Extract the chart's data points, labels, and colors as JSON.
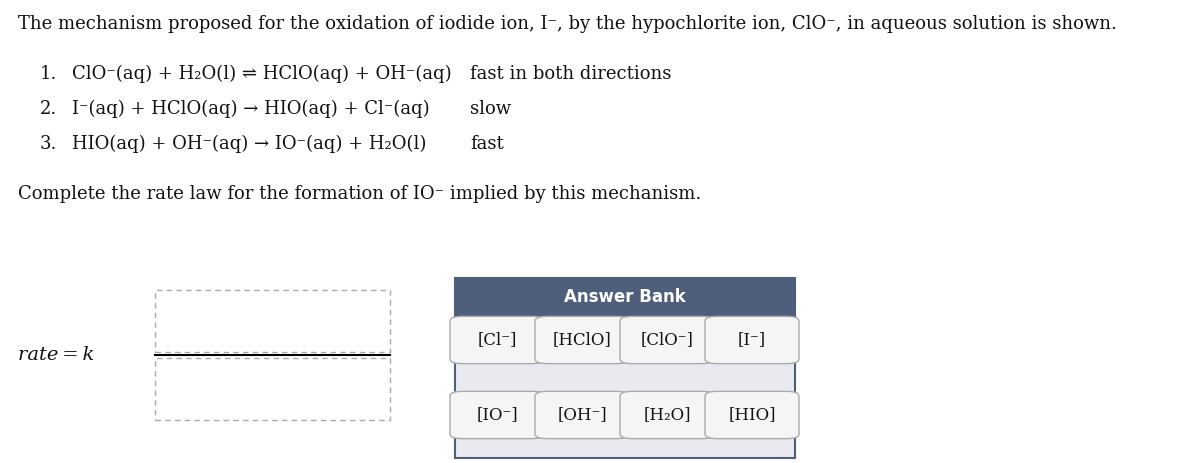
{
  "bg_color": "#ffffff",
  "title_text": "The mechanism proposed for the oxidation of iodide ion, I⁻, by the hypochlorite ion, ClO⁻, in aqueous solution is shown.",
  "reactions": [
    {
      "num": "1.",
      "eq": "ClO⁻(aq) + H₂O(l) ⇌ HClO(aq) + OH⁻(aq)",
      "label": "fast in both directions"
    },
    {
      "num": "2.",
      "eq": "I⁻(aq) + HClO(aq) → HIO(aq) + Cl⁻(aq)",
      "label": "slow"
    },
    {
      "num": "3.",
      "eq": "HIO(aq) + OH⁻(aq) → IO⁻(aq) + H₂O(l)",
      "label": "fast"
    }
  ],
  "question": "Complete the rate law for the formation of IO⁻ implied by this mechanism.",
  "rate_label": "rate = k",
  "answer_bank_header": "Answer Bank",
  "answer_bank_header_bg": "#4d5f7a",
  "answer_bank_header_text": "#ffffff",
  "answer_bank_body_bg": "#e8eaf0",
  "answer_bank_border": "#4d5f7a",
  "button_bg": "#f5f5f5",
  "button_border": "#aaaaaa",
  "buttons_row1": [
    "[Cl⁻]",
    "[HClO]",
    "[ClO⁻]",
    "[I⁻]"
  ],
  "buttons_row2": [
    "[IO⁻]",
    "[OH⁻]",
    "[H₂O]",
    "[HIO]"
  ],
  "dashed_box_color": "#aaaaaa",
  "line_color": "#000000",
  "text_color": "#111111",
  "title_fontsize": 13,
  "reaction_fontsize": 13,
  "question_fontsize": 13,
  "rate_fontsize": 14
}
